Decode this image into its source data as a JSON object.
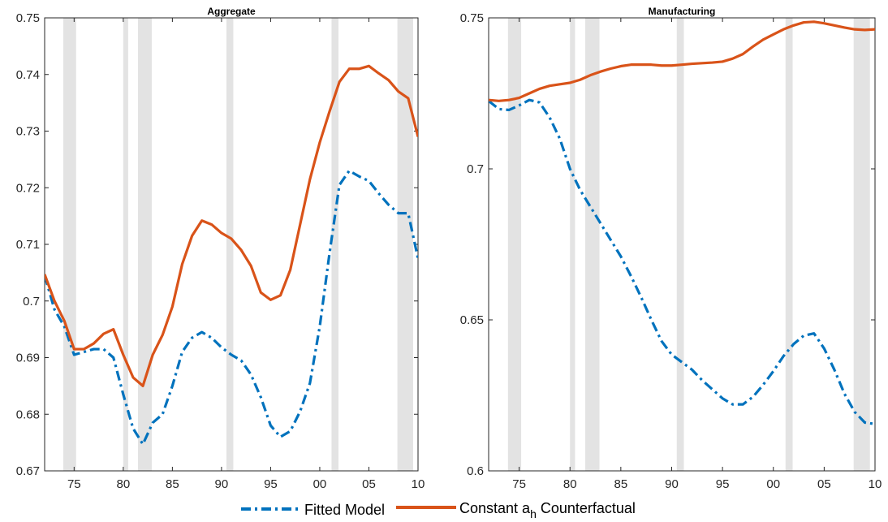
{
  "chart_data": [
    {
      "type": "line",
      "title": "Aggregate",
      "xlabel": "",
      "ylabel": "",
      "xlim": [
        1972,
        2010
      ],
      "ylim": [
        0.67,
        0.75
      ],
      "x_ticks": [
        1975,
        1980,
        1985,
        1990,
        1995,
        2000,
        2005,
        2010
      ],
      "x_tick_labels": [
        "75",
        "80",
        "85",
        "90",
        "95",
        "00",
        "05",
        "10"
      ],
      "y_ticks": [
        0.67,
        0.68,
        0.69,
        0.7,
        0.71,
        0.72,
        0.73,
        0.74,
        0.75
      ],
      "y_tick_labels": [
        "0.67",
        "0.68",
        "0.69",
        "0.7",
        "0.71",
        "0.72",
        "0.73",
        "0.74",
        "0.75"
      ],
      "recession_bands": [
        [
          1973.9,
          1975.2
        ],
        [
          1980.0,
          1980.5
        ],
        [
          1981.5,
          1982.9
        ],
        [
          1990.5,
          1991.2
        ],
        [
          2001.2,
          2001.9
        ],
        [
          2007.9,
          2009.5
        ]
      ],
      "x": [
        1972,
        1973,
        1974,
        1975,
        1976,
        1977,
        1978,
        1979,
        1980,
        1981,
        1982,
        1983,
        1984,
        1985,
        1986,
        1987,
        1988,
        1989,
        1990,
        1991,
        1992,
        1993,
        1994,
        1995,
        1996,
        1997,
        1998,
        1999,
        2000,
        2001,
        2002,
        2003,
        2004,
        2005,
        2006,
        2007,
        2008,
        2009,
        2010
      ],
      "series": [
        {
          "name": "Fitted Model",
          "style": "dash-dot",
          "color": "#0072BD",
          "values": [
            0.7045,
            0.6985,
            0.6955,
            0.6905,
            0.691,
            0.6915,
            0.6915,
            0.69,
            0.6835,
            0.6775,
            0.6747,
            0.6785,
            0.68,
            0.685,
            0.691,
            0.6935,
            0.6945,
            0.6935,
            0.6918,
            0.6905,
            0.6895,
            0.687,
            0.683,
            0.678,
            0.676,
            0.677,
            0.6805,
            0.6855,
            0.6955,
            0.7085,
            0.7205,
            0.723,
            0.722,
            0.7212,
            0.719,
            0.717,
            0.7155,
            0.7155,
            0.7075
          ]
        },
        {
          "name": "Constant a_h Counterfactual",
          "style": "solid",
          "color": "#D95319",
          "values": [
            0.7047,
            0.7,
            0.6965,
            0.6915,
            0.6915,
            0.6925,
            0.6942,
            0.695,
            0.6905,
            0.6865,
            0.685,
            0.6905,
            0.694,
            0.699,
            0.7065,
            0.7115,
            0.7142,
            0.7135,
            0.712,
            0.711,
            0.709,
            0.7062,
            0.7015,
            0.7002,
            0.701,
            0.7055,
            0.7135,
            0.7215,
            0.728,
            0.7335,
            0.7387,
            0.741,
            0.741,
            0.7415,
            0.7402,
            0.739,
            0.737,
            0.7358,
            0.729
          ]
        }
      ],
      "legend": "bottom-center"
    },
    {
      "type": "line",
      "title": "Manufacturing",
      "xlabel": "",
      "ylabel": "",
      "xlim": [
        1972,
        2010
      ],
      "ylim": [
        0.6,
        0.75
      ],
      "x_ticks": [
        1975,
        1980,
        1985,
        1990,
        1995,
        2000,
        2005,
        2010
      ],
      "x_tick_labels": [
        "75",
        "80",
        "85",
        "90",
        "95",
        "00",
        "05",
        "10"
      ],
      "y_ticks": [
        0.6,
        0.65,
        0.7,
        0.75
      ],
      "y_tick_labels": [
        "0.6",
        "0.65",
        "0.7",
        "0.75"
      ],
      "recession_bands": [
        [
          1973.9,
          1975.2
        ],
        [
          1980.0,
          1980.5
        ],
        [
          1981.5,
          1982.9
        ],
        [
          1990.5,
          1991.2
        ],
        [
          2001.2,
          2001.9
        ],
        [
          2007.9,
          2009.5
        ]
      ],
      "x": [
        1972,
        1973,
        1974,
        1975,
        1976,
        1977,
        1978,
        1979,
        1980,
        1981,
        1982,
        1983,
        1984,
        1985,
        1986,
        1987,
        1988,
        1989,
        1990,
        1991,
        1992,
        1993,
        1994,
        1995,
        1996,
        1997,
        1998,
        1999,
        2000,
        2001,
        2002,
        2003,
        2004,
        2005,
        2006,
        2007,
        2008,
        2009,
        2010
      ],
      "series": [
        {
          "name": "Fitted Model",
          "style": "dash-dot",
          "color": "#0072BD",
          "values": [
            0.7225,
            0.7198,
            0.7195,
            0.721,
            0.7228,
            0.722,
            0.717,
            0.71,
            0.7,
            0.693,
            0.6875,
            0.682,
            0.6765,
            0.671,
            0.6645,
            0.6575,
            0.65,
            0.643,
            0.6385,
            0.636,
            0.6335,
            0.63,
            0.627,
            0.624,
            0.622,
            0.622,
            0.6245,
            0.6285,
            0.633,
            0.638,
            0.642,
            0.6448,
            0.6455,
            0.6405,
            0.6335,
            0.6255,
            0.6195,
            0.616,
            0.6155
          ]
        },
        {
          "name": "Constant a_h Counterfactual",
          "style": "solid",
          "color": "#D95319",
          "values": [
            0.7228,
            0.7225,
            0.7228,
            0.7235,
            0.725,
            0.7265,
            0.7275,
            0.728,
            0.7285,
            0.7295,
            0.731,
            0.7322,
            0.7332,
            0.734,
            0.7345,
            0.7345,
            0.7345,
            0.7342,
            0.7342,
            0.7345,
            0.7348,
            0.735,
            0.7352,
            0.7355,
            0.7365,
            0.738,
            0.7405,
            0.7428,
            0.7445,
            0.7462,
            0.7475,
            0.7485,
            0.7487,
            0.7482,
            0.7475,
            0.7468,
            0.7462,
            0.746,
            0.7462
          ]
        }
      ],
      "legend": "bottom-center"
    }
  ],
  "legend": {
    "fitted_label": "Fitted Model",
    "counterfactual_prefix": "Constant a",
    "counterfactual_subscript": "h",
    "counterfactual_suffix": " Counterfactual"
  },
  "colors": {
    "fitted": "#0072BD",
    "counterfactual": "#D95319",
    "recession": "#E3E3E3"
  }
}
